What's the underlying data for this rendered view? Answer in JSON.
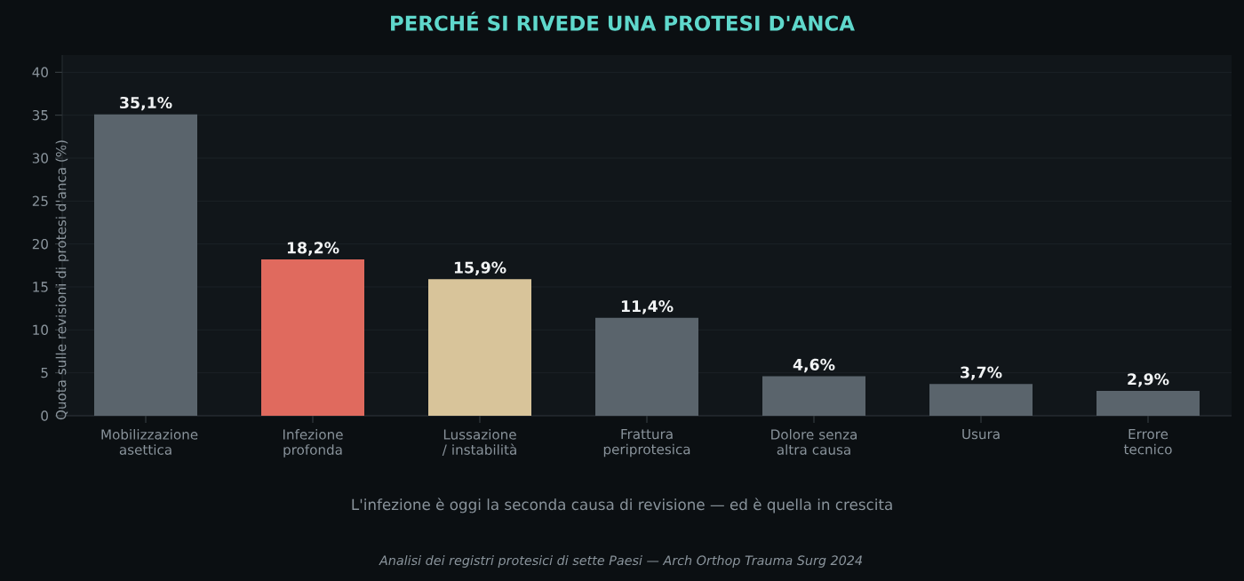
{
  "chart_data": {
    "type": "bar",
    "title": "PERCHÉ SI RIVEDE UNA PROTESI D'ANCA",
    "ylabel": "Quota sulle revisioni di protesi d'anca (%)",
    "categories": [
      "Mobilizzazione asettica",
      "Infezione profonda",
      "Lussazione / instabilità",
      "Frattura periprotesica",
      "Dolore senza altra causa",
      "Usura",
      "Errore tecnico"
    ],
    "values": [
      35.1,
      18.2,
      15.9,
      11.4,
      4.6,
      3.7,
      2.9
    ],
    "colors": [
      "#5a646c",
      "#e06a5e",
      "#d8c49a",
      "#5a646c",
      "#5a646c",
      "#5a646c",
      "#5a646c"
    ],
    "value_labels": [
      "35,1%",
      "18,2%",
      "15,9%",
      "11,4%",
      "4,6%",
      "3,7%",
      "2,9%"
    ],
    "ylim": [
      0,
      42
    ],
    "yticks": [
      0,
      5,
      10,
      15,
      20,
      25,
      30,
      35,
      40
    ],
    "grid": "y",
    "annotations": [
      "L'infezione è oggi la seconda causa di revisione — ed è quella in crescita",
      "Analisi dei registri protesici di sette Paesi — Arch Orthop Trauma Surg 2024"
    ]
  }
}
